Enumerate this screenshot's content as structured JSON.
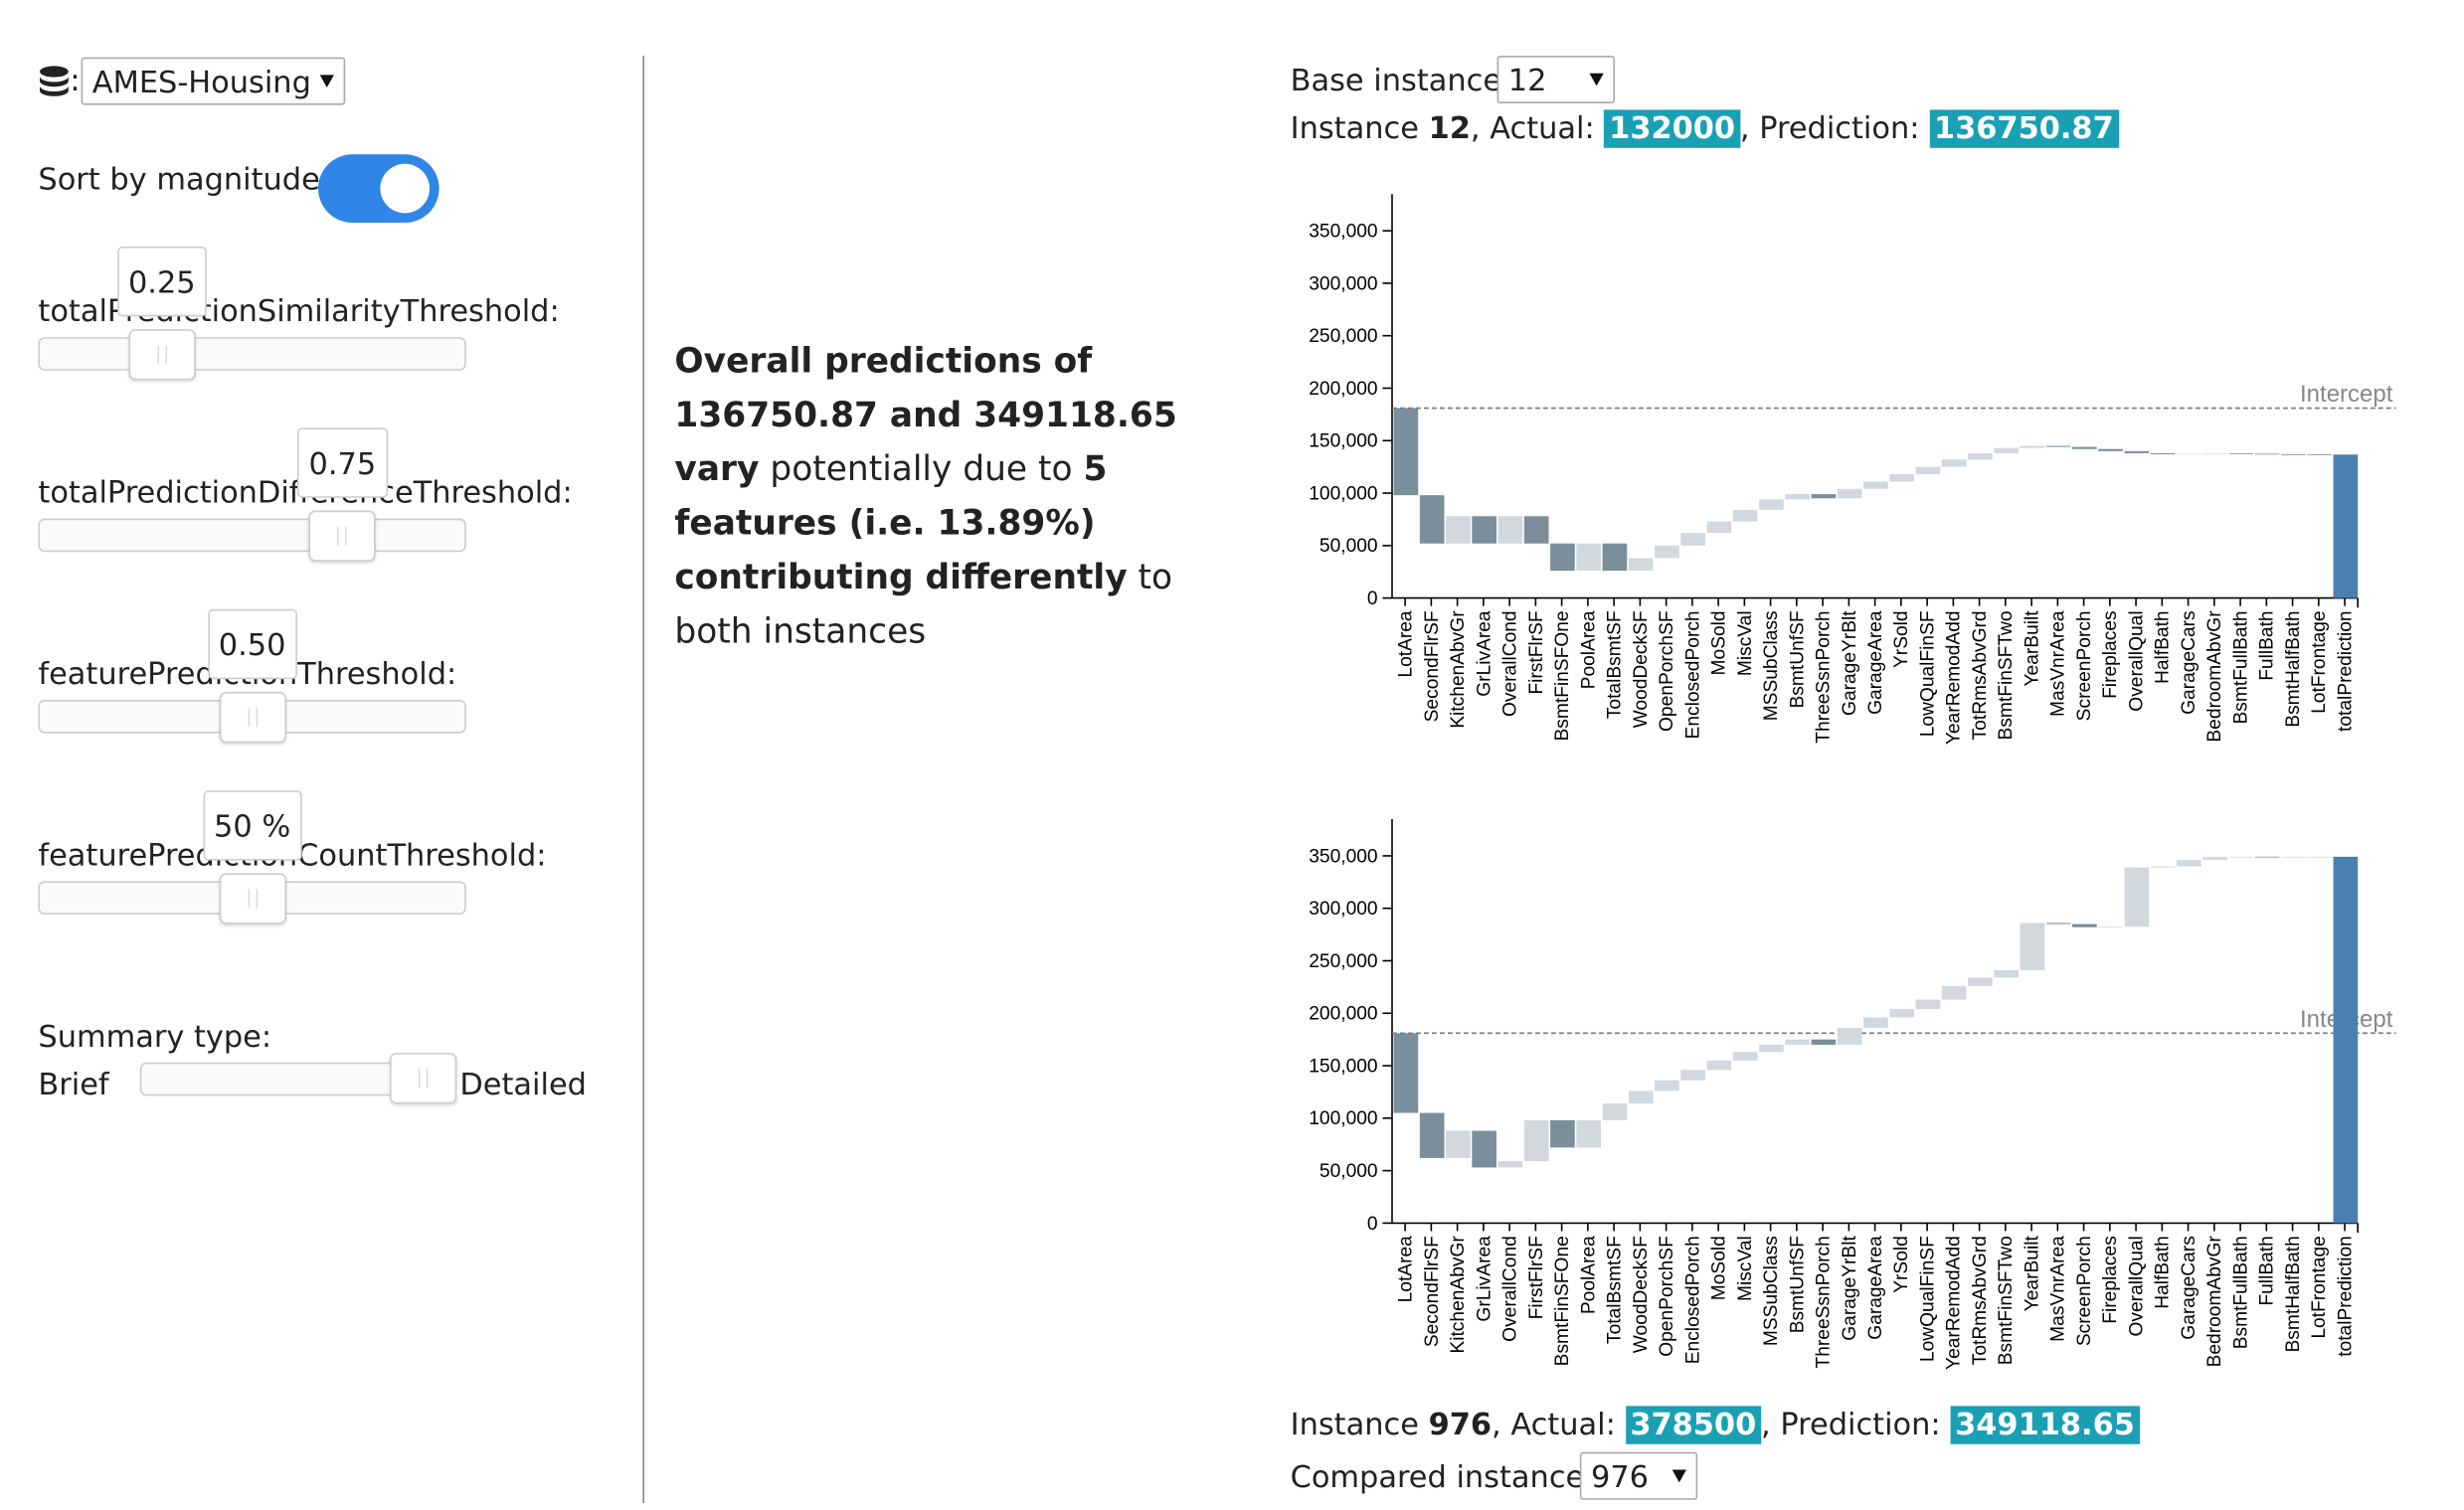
{
  "dataset_selector": {
    "prefix": ":",
    "value": "AMES-Housing"
  },
  "sort_by_magnitude": {
    "label": "Sort by magnitude:",
    "enabled": true
  },
  "sliders": [
    {
      "label": "totalPredictionSimilarityThreshold:",
      "value": 0.25,
      "value_label": "0.25",
      "range": [
        0,
        1
      ]
    },
    {
      "label": "totalPredictionDifferenceThreshold:",
      "value": 0.75,
      "value_label": "0.75",
      "range": [
        0,
        1
      ]
    },
    {
      "label": "featurePredictionThreshold:",
      "value": 0.5,
      "value_label": "0.50",
      "range": [
        0,
        1
      ]
    },
    {
      "label": "featurePredictionCountThreshold:",
      "value": 50,
      "value_label": "50 %",
      "range": [
        0,
        100
      ]
    }
  ],
  "summary_type": {
    "label": "Summary type:",
    "options": [
      "Brief",
      "Detailed"
    ],
    "selected": 1
  },
  "explanation": [
    {
      "text": "Overall predictions of 136750.87 and 349118.65 vary",
      "style": "bold"
    },
    {
      "text": " potentially due to "
    },
    {
      "text": "5 features (i.e. 13.89%) contributing differently",
      "style": "bold"
    },
    {
      "text": " to both instances"
    }
  ],
  "base_instance": {
    "label": "Base instance:",
    "value": "12"
  },
  "base_info": [
    {
      "text": "Instance "
    },
    {
      "text": "12",
      "style": "bold"
    },
    {
      "text": ", Actual: "
    },
    {
      "text": "132000",
      "style": "badge"
    },
    {
      "text": ", Prediction: "
    },
    {
      "text": "136750.87",
      "style": "badge"
    }
  ],
  "compared_info": [
    {
      "text": "Instance "
    },
    {
      "text": "976",
      "style": "bold"
    },
    {
      "text": ", Actual: "
    },
    {
      "text": "378500",
      "style": "badge"
    },
    {
      "text": ", Prediction: "
    },
    {
      "text": "349118.65",
      "style": "badge"
    }
  ],
  "compared_instance": {
    "label": "Compared instance:",
    "value": "976"
  },
  "charts": [
    {
      "type": "waterfall",
      "categories": [
        "LotArea",
        "SecondFlrSF",
        "KitchenAbvGr",
        "GrLivArea",
        "OverallCond",
        "FirstFlrSF",
        "BsmtFinSFOne",
        "PoolArea",
        "TotalBsmtSF",
        "WoodDeckSF",
        "OpenPorchSF",
        "EnclosedPorch",
        "MoSold",
        "MiscVal",
        "MSSubClass",
        "BsmtUnfSF",
        "ThreeSsnPorch",
        "GarageYrBlt",
        "GarageArea",
        "YrSold",
        "LowQualFinSF",
        "YearRemodAdd",
        "TotRmsAbvGrd",
        "BsmtFinSFTwo",
        "YearBuilt",
        "MasVnrArea",
        "ScreenPorch",
        "Fireplaces",
        "OverallQual",
        "HalfBath",
        "GarageCars",
        "BedroomAbvGr",
        "BsmtFullBath",
        "FullBath",
        "BsmtHalfBath",
        "LotFrontage",
        "totalPrediction"
      ],
      "values": [
        -83000,
        -46000,
        26000,
        -26000,
        26000,
        -26000,
        -26000,
        26000,
        -26000,
        12000,
        12000,
        12000,
        11000,
        11000,
        10000,
        5000,
        -4000,
        9000,
        7000,
        7000,
        7000,
        7000,
        6000,
        5000,
        2000,
        -1000,
        -2000,
        -2000,
        -2000,
        -1000,
        500,
        500,
        -500,
        -500,
        -200,
        -50,
        136750.87
      ],
      "intercept": 181000,
      "intercept_label": "Intercept",
      "increase_color": "#d1d9de",
      "decrease_color": "#7b8e9b",
      "total_color": "#4a80b2",
      "ylim": [
        0,
        385000
      ],
      "yticks": [
        {
          "value": 0,
          "label": "0"
        },
        {
          "value": 50000,
          "label": "50,000"
        },
        {
          "value": 100000,
          "label": "100,000"
        },
        {
          "value": 150000,
          "label": "150,000"
        },
        {
          "value": 200000,
          "label": "200,000"
        },
        {
          "value": 250000,
          "label": "250,000"
        },
        {
          "value": 300000,
          "label": "300,000"
        },
        {
          "value": 350000,
          "label": "350,000"
        }
      ]
    },
    {
      "type": "waterfall",
      "categories": [
        "LotArea",
        "SecondFlrSF",
        "KitchenAbvGr",
        "GrLivArea",
        "OverallCond",
        "FirstFlrSF",
        "BsmtFinSFOne",
        "PoolArea",
        "TotalBsmtSF",
        "WoodDeckSF",
        "OpenPorchSF",
        "EnclosedPorch",
        "MoSold",
        "MiscVal",
        "MSSubClass",
        "BsmtUnfSF",
        "ThreeSsnPorch",
        "GarageYrBlt",
        "GarageArea",
        "YrSold",
        "LowQualFinSF",
        "YearRemodAdd",
        "TotRmsAbvGrd",
        "BsmtFinSFTwo",
        "YearBuilt",
        "MasVnrArea",
        "ScreenPorch",
        "Fireplaces",
        "OverallQual",
        "HalfBath",
        "GarageCars",
        "BedroomAbvGr",
        "BsmtFullBath",
        "FullBath",
        "BsmtHalfBath",
        "LotFrontage",
        "totalPrediction"
      ],
      "values": [
        -76000,
        -43000,
        26000,
        -35000,
        6000,
        39000,
        -26000,
        26000,
        16000,
        12000,
        10000,
        10000,
        9000,
        8000,
        7000,
        5000,
        -5000,
        16000,
        10000,
        8000,
        9000,
        13000,
        8000,
        7000,
        45000,
        -1000,
        -3000,
        500,
        56500,
        1000,
        6000,
        3000,
        200,
        -100,
        10,
        8.65,
        349118.65
      ],
      "intercept": 181000,
      "intercept_label": "Intercept",
      "increase_color": "#d1d9de",
      "decrease_color": "#7b8e9b",
      "total_color": "#4a80b2",
      "ylim": [
        0,
        385000
      ],
      "yticks": [
        {
          "value": 0,
          "label": "0"
        },
        {
          "value": 50000,
          "label": "50,000"
        },
        {
          "value": 100000,
          "label": "100,000"
        },
        {
          "value": 150000,
          "label": "150,000"
        },
        {
          "value": 200000,
          "label": "200,000"
        },
        {
          "value": 250000,
          "label": "250,000"
        },
        {
          "value": 300000,
          "label": "300,000"
        },
        {
          "value": 350000,
          "label": "350,000"
        }
      ]
    }
  ]
}
